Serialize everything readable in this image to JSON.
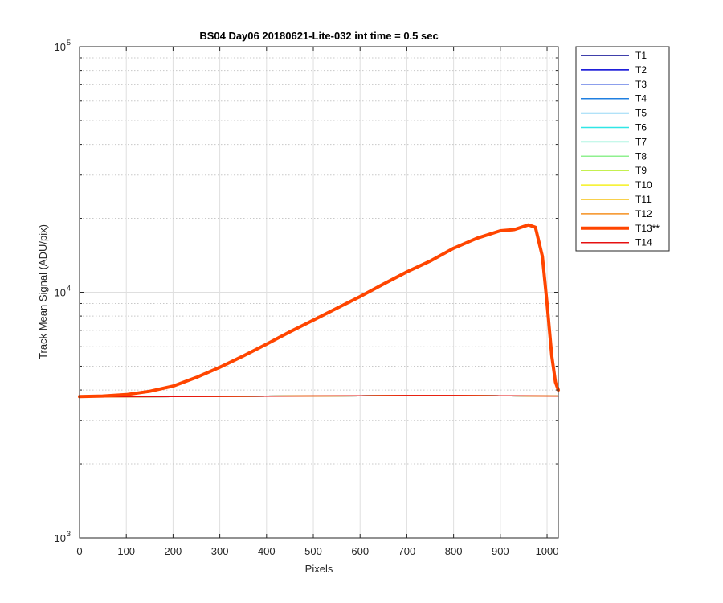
{
  "chart_data": {
    "type": "line",
    "title": "BS04 Day06 20180621-Lite-032 int time = 0.5 sec",
    "xlabel": "Pixels",
    "ylabel": "Track Mean Signal (ADU/pix)",
    "xlim": [
      0,
      1024
    ],
    "ylim": [
      1000,
      100000
    ],
    "yscale": "log",
    "grid": true,
    "minor_grid": true,
    "legend_position": "outside-right",
    "x_ticks": [
      0,
      100,
      200,
      300,
      400,
      500,
      600,
      700,
      800,
      900,
      1000
    ],
    "y_ticks": [
      {
        "value": 1000,
        "base": "10",
        "exp": "3"
      },
      {
        "value": 10000,
        "base": "10",
        "exp": "4"
      },
      {
        "value": 100000,
        "base": "10",
        "exp": "5"
      }
    ],
    "flat_series_x": [
      0,
      200,
      400,
      600,
      700,
      800,
      900,
      1024
    ],
    "flat_series_y": [
      3750,
      3760,
      3775,
      3790,
      3800,
      3800,
      3790,
      3780
    ],
    "highlighted_series_x": [
      0,
      50,
      100,
      150,
      200,
      250,
      300,
      350,
      400,
      450,
      500,
      550,
      600,
      650,
      700,
      750,
      800,
      850,
      900,
      930,
      960,
      975,
      990,
      1000,
      1010,
      1018,
      1024
    ],
    "highlighted_series_y": [
      3760,
      3780,
      3830,
      3950,
      4150,
      4500,
      4950,
      5500,
      6150,
      6900,
      7700,
      8600,
      9600,
      10800,
      12100,
      13400,
      15100,
      16600,
      17800,
      18000,
      18800,
      18400,
      14000,
      9000,
      5500,
      4300,
      4000
    ],
    "series": [
      {
        "name": "T1",
        "color": "#00008f",
        "width": 1.5,
        "data": "flat"
      },
      {
        "name": "T2",
        "color": "#0000d4",
        "width": 1.5,
        "data": "flat"
      },
      {
        "name": "T3",
        "color": "#1a3fd9",
        "width": 1.5,
        "data": "flat"
      },
      {
        "name": "T4",
        "color": "#1f7fe0",
        "width": 1.5,
        "data": "flat"
      },
      {
        "name": "T5",
        "color": "#2fb0ee",
        "width": 1.5,
        "data": "flat"
      },
      {
        "name": "T6",
        "color": "#30e6e6",
        "width": 1.5,
        "data": "flat"
      },
      {
        "name": "T7",
        "color": "#66ecc7",
        "width": 1.5,
        "data": "flat"
      },
      {
        "name": "T8",
        "color": "#8ff08f",
        "width": 1.5,
        "data": "flat"
      },
      {
        "name": "T9",
        "color": "#c5f050",
        "width": 1.5,
        "data": "flat"
      },
      {
        "name": "T10",
        "color": "#f5f020",
        "width": 1.5,
        "data": "flat"
      },
      {
        "name": "T11",
        "color": "#f5c010",
        "width": 1.5,
        "data": "flat"
      },
      {
        "name": "T12",
        "color": "#f59020",
        "width": 1.5,
        "data": "flat"
      },
      {
        "name": "T13**",
        "color": "#ff4500",
        "width": 4,
        "data": "highlighted"
      },
      {
        "name": "T14",
        "color": "#e61010",
        "width": 1.5,
        "data": "flat"
      }
    ]
  }
}
